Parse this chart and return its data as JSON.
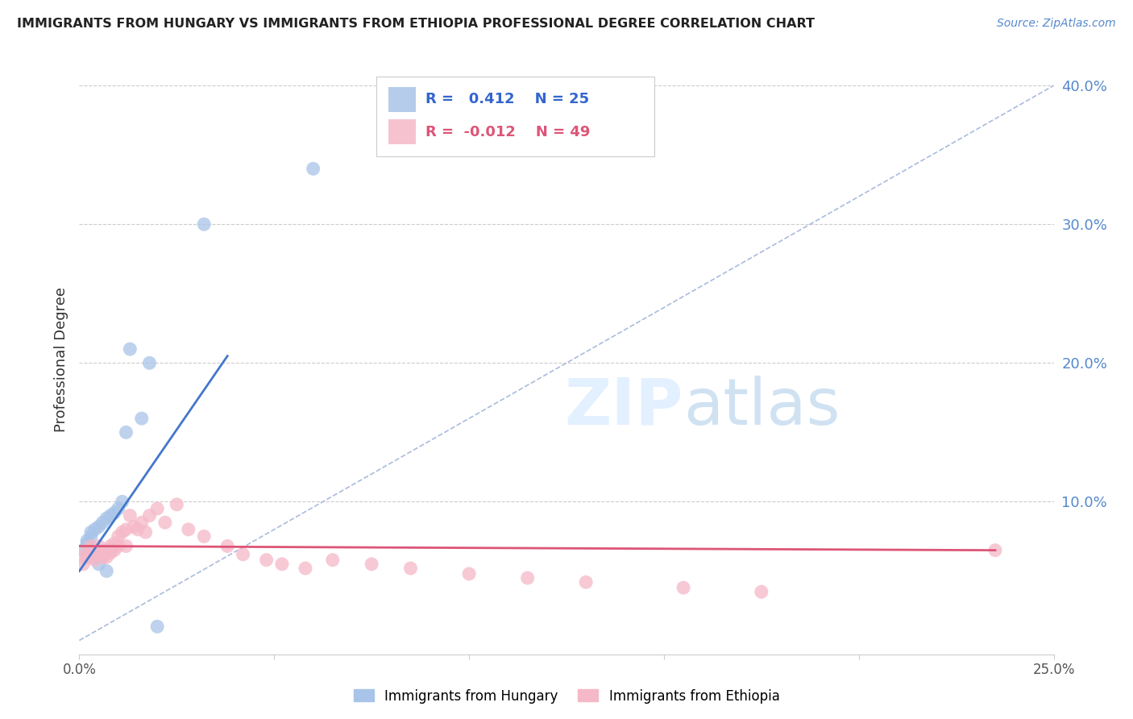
{
  "title": "IMMIGRANTS FROM HUNGARY VS IMMIGRANTS FROM ETHIOPIA PROFESSIONAL DEGREE CORRELATION CHART",
  "source": "Source: ZipAtlas.com",
  "ylabel": "Professional Degree",
  "xlim": [
    0.0,
    0.25
  ],
  "ylim": [
    -0.01,
    0.415
  ],
  "x_ticks": [
    0.0,
    0.05,
    0.1,
    0.15,
    0.2,
    0.25
  ],
  "x_tick_labels": [
    "0.0%",
    "",
    "",
    "",
    "",
    "25.0%"
  ],
  "y_ticks_right": [
    0.1,
    0.2,
    0.3,
    0.4
  ],
  "y_tick_labels_right": [
    "10.0%",
    "20.0%",
    "30.0%",
    "40.0%"
  ],
  "hungary_R": 0.412,
  "hungary_N": 25,
  "ethiopia_R": -0.012,
  "ethiopia_N": 49,
  "hungary_color": "#a8c4e8",
  "ethiopia_color": "#f5b8c8",
  "hungary_line_color": "#4477cc",
  "ethiopia_line_color": "#dd5577",
  "diagonal_color": "#aabbdd",
  "grid_color": "#cccccc",
  "legend_hungary": "Immigrants from Hungary",
  "legend_ethiopia": "Immigrants from Ethiopia",
  "hungary_x": [
    0.001,
    0.002,
    0.002,
    0.003,
    0.003,
    0.004,
    0.004,
    0.005,
    0.005,
    0.006,
    0.006,
    0.007,
    0.007,
    0.008,
    0.008,
    0.009,
    0.01,
    0.011,
    0.012,
    0.013,
    0.016,
    0.018,
    0.02,
    0.032,
    0.06
  ],
  "hungary_y": [
    0.065,
    0.07,
    0.072,
    0.075,
    0.078,
    0.08,
    0.06,
    0.055,
    0.082,
    0.085,
    0.06,
    0.088,
    0.05,
    0.09,
    0.065,
    0.092,
    0.095,
    0.1,
    0.15,
    0.21,
    0.16,
    0.2,
    0.01,
    0.3,
    0.34
  ],
  "ethiopia_x": [
    0.001,
    0.001,
    0.002,
    0.002,
    0.003,
    0.003,
    0.004,
    0.004,
    0.005,
    0.005,
    0.005,
    0.006,
    0.006,
    0.007,
    0.007,
    0.008,
    0.008,
    0.009,
    0.009,
    0.01,
    0.01,
    0.011,
    0.012,
    0.012,
    0.013,
    0.014,
    0.015,
    0.016,
    0.017,
    0.018,
    0.02,
    0.022,
    0.025,
    0.028,
    0.032,
    0.038,
    0.042,
    0.048,
    0.052,
    0.058,
    0.065,
    0.075,
    0.085,
    0.1,
    0.115,
    0.13,
    0.155,
    0.175,
    0.235
  ],
  "ethiopia_y": [
    0.06,
    0.055,
    0.065,
    0.06,
    0.068,
    0.06,
    0.062,
    0.058,
    0.065,
    0.068,
    0.062,
    0.06,
    0.063,
    0.065,
    0.06,
    0.068,
    0.063,
    0.07,
    0.065,
    0.075,
    0.068,
    0.078,
    0.068,
    0.08,
    0.09,
    0.082,
    0.08,
    0.085,
    0.078,
    0.09,
    0.095,
    0.085,
    0.098,
    0.08,
    0.075,
    0.068,
    0.062,
    0.058,
    0.055,
    0.052,
    0.058,
    0.055,
    0.052,
    0.048,
    0.045,
    0.042,
    0.038,
    0.035,
    0.065
  ],
  "hungary_line_x": [
    0.0,
    0.038
  ],
  "hungary_line_y": [
    0.05,
    0.205
  ],
  "ethiopia_line_x": [
    0.0,
    0.235
  ],
  "ethiopia_line_y": [
    0.068,
    0.065
  ]
}
